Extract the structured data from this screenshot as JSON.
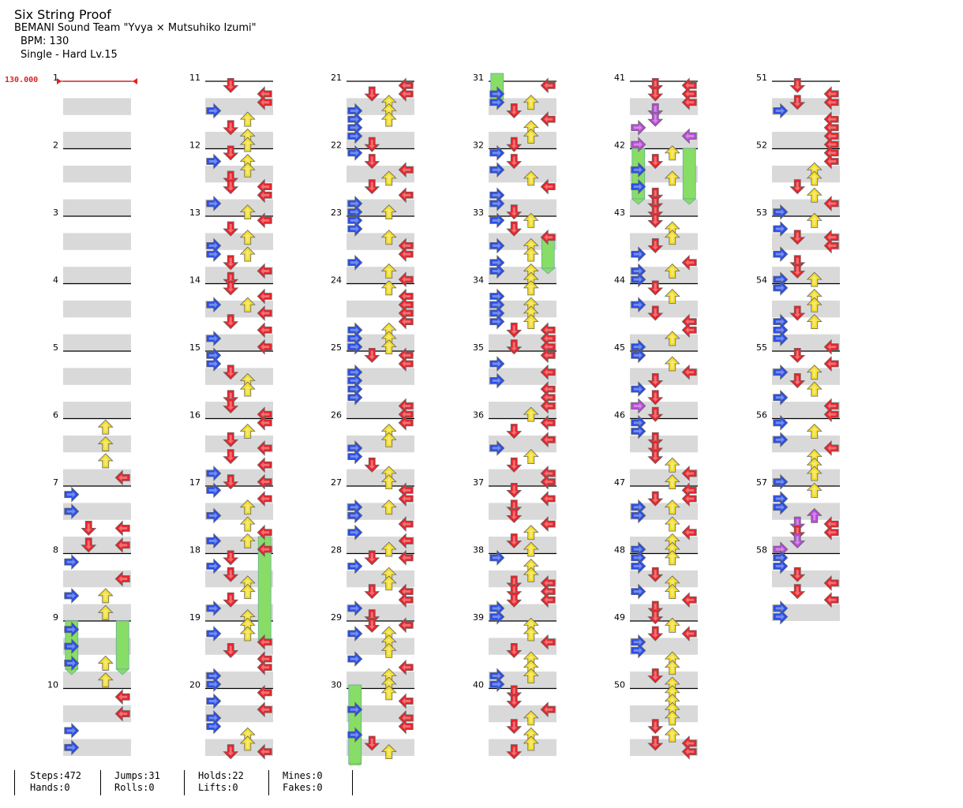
{
  "song": {
    "title": "Six String Proof",
    "artist": "BEMANI Sound Team \"Yvya × Mutsuhiko Izumi\"",
    "bpm_label": "BPM: 130",
    "difficulty_label": "Single - Hard  Lv.15"
  },
  "bpm_marker": "130.000",
  "measures": [
    "1",
    "2",
    "3",
    "4",
    "5",
    "6",
    "7",
    "8",
    "9",
    "10",
    "11",
    "12",
    "13",
    "14",
    "15",
    "16",
    "17",
    "18",
    "19",
    "20",
    "21",
    "22",
    "23",
    "24",
    "25",
    "26",
    "27",
    "28",
    "29",
    "30",
    "31",
    "32",
    "33",
    "34",
    "35",
    "36",
    "37",
    "38",
    "39",
    "40",
    "41",
    "42",
    "43",
    "44",
    "45",
    "46",
    "47",
    "48",
    "49",
    "50",
    "51",
    "52",
    "53",
    "54",
    "55",
    "56",
    "57",
    "58"
  ],
  "colors": {
    "left": "#2a4fe6",
    "down": "#e8242c",
    "up": "#f2dd2a",
    "right": "#e8242c",
    "hold": "#88dd66",
    "lift": "#b84ad8",
    "band": "#d9d9d9"
  },
  "stats": {
    "steps": "Steps:472",
    "hands": "Hands:0",
    "jumps": "Jumps:31",
    "rolls": "Rolls:0",
    "holds": "Holds:22",
    "lifts": "Lifts:0",
    "mines": "Mines:0",
    "fakes": "Fakes:0"
  }
}
